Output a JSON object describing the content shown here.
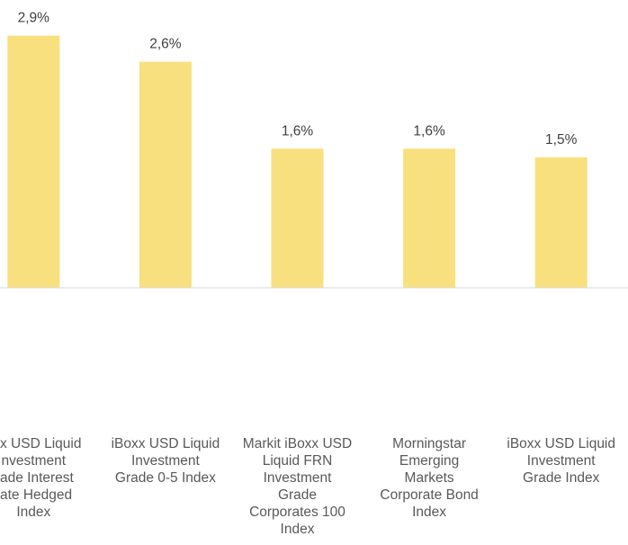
{
  "chart_data": {
    "type": "bar",
    "categories": [
      [
        "x USD Liquid",
        "nvestment",
        "ade Interest",
        "ate Hedged",
        "Index"
      ],
      [
        "iBoxx USD Liquid",
        "Investment",
        "Grade 0-5 Index"
      ],
      [
        "Markit iBoxx USD",
        "Liquid FRN",
        "Investment",
        "Grade",
        "Corporates 100",
        "Index"
      ],
      [
        "Morningstar",
        "Emerging",
        "Markets",
        "Corporate Bond",
        "Index"
      ],
      [
        "iBoxx USD Liquid",
        "Investment",
        "Grade Index"
      ]
    ],
    "values": [
      2.9,
      2.6,
      1.6,
      1.6,
      1.5
    ],
    "value_labels": [
      "2,9%",
      "2,6%",
      "1,6%",
      "1,6%",
      "1,5%"
    ],
    "color": "#f8e07e",
    "ylim": [
      0,
      3
    ]
  }
}
